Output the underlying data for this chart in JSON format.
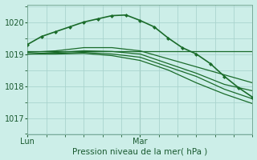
{
  "xlabel": "Pression niveau de la mer( hPa )",
  "bg_color": "#cceee8",
  "grid_color": "#aad4ce",
  "line_color": "#1a6b2a",
  "ylim": [
    1016.85,
    1020.55
  ],
  "xlim": [
    0,
    48
  ],
  "mar_x": 24,
  "series": [
    {
      "x": [
        0,
        3,
        6,
        9,
        12,
        15,
        18,
        21,
        24,
        27,
        30,
        33,
        36,
        39,
        42,
        45,
        48
      ],
      "y": [
        1019.3,
        1019.55,
        1019.7,
        1019.85,
        1020.0,
        1020.1,
        1020.2,
        1020.22,
        1020.05,
        1019.85,
        1019.5,
        1019.2,
        1019.0,
        1018.7,
        1018.3,
        1017.95,
        1017.65
      ],
      "has_markers": true,
      "linewidth": 1.2,
      "marker": "D",
      "markersize": 2.5
    },
    {
      "x": [
        0,
        48
      ],
      "y": [
        1019.1,
        1019.1
      ],
      "has_markers": false,
      "linewidth": 0.9
    },
    {
      "x": [
        0,
        6,
        12,
        18,
        24,
        30,
        36,
        42,
        48
      ],
      "y": [
        1019.05,
        1019.1,
        1019.2,
        1019.2,
        1019.1,
        1018.85,
        1018.6,
        1018.35,
        1018.1
      ],
      "has_markers": false,
      "linewidth": 0.9
    },
    {
      "x": [
        0,
        6,
        12,
        18,
        24,
        30,
        36,
        42,
        48
      ],
      "y": [
        1019.0,
        1019.05,
        1019.1,
        1019.08,
        1019.0,
        1018.7,
        1018.4,
        1018.05,
        1017.85
      ],
      "has_markers": false,
      "linewidth": 0.9
    },
    {
      "x": [
        0,
        6,
        12,
        18,
        24,
        30,
        36,
        42,
        48
      ],
      "y": [
        1019.0,
        1019.02,
        1019.05,
        1019.0,
        1018.9,
        1018.6,
        1018.3,
        1017.9,
        1017.6
      ],
      "has_markers": false,
      "linewidth": 0.9
    },
    {
      "x": [
        0,
        6,
        12,
        18,
        24,
        30,
        36,
        42,
        48
      ],
      "y": [
        1019.0,
        1019.0,
        1019.02,
        1018.95,
        1018.8,
        1018.5,
        1018.1,
        1017.75,
        1017.45
      ],
      "has_markers": false,
      "linewidth": 0.9
    }
  ],
  "xtick_positions": [
    0,
    24
  ],
  "xtick_labels": [
    "Lun",
    "Mar"
  ],
  "ytick_positions": [
    1017,
    1018,
    1019,
    1020
  ],
  "ytick_labels": [
    "1017",
    "1018",
    "1019",
    "1020"
  ]
}
